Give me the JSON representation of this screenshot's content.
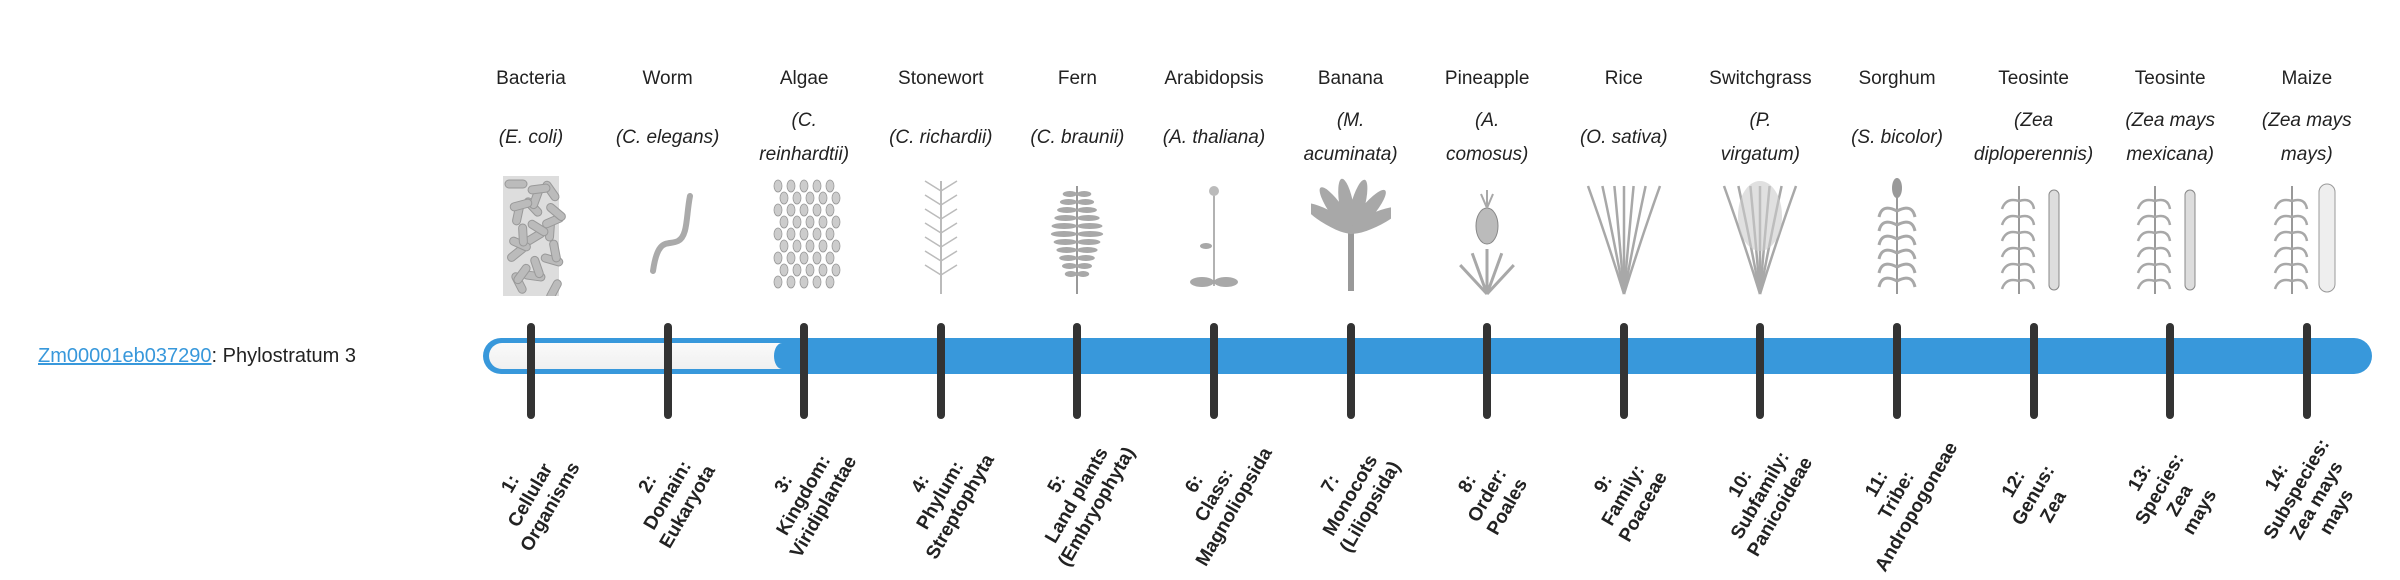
{
  "gene": {
    "id": "Zm00001eb037290",
    "separator": ": ",
    "stratum_text": "Phylostratum 3",
    "stratum": 3
  },
  "colors": {
    "bar": "#3898db",
    "link": "#3898db",
    "tick": "#333333"
  },
  "columns": [
    {
      "name": "Bacteria",
      "species": [
        "(E. coli)"
      ],
      "icon": "bacteria-icon",
      "rank": [
        "1:",
        "Cellular",
        "Organisms"
      ]
    },
    {
      "name": "Worm",
      "species": [
        "(C. elegans)"
      ],
      "icon": "worm-icon",
      "rank": [
        "2:",
        "Domain:",
        "Eukaryota"
      ]
    },
    {
      "name": "Algae",
      "species": [
        "(C.",
        "reinhardtii)"
      ],
      "icon": "algae-icon",
      "rank": [
        "3:",
        "Kingdom:",
        "Viridiplantae"
      ]
    },
    {
      "name": "Stonewort",
      "species": [
        "(C. richardii)"
      ],
      "icon": "stonewort-icon",
      "rank": [
        "4:",
        "Phylum:",
        "Streptophyta"
      ]
    },
    {
      "name": "Fern",
      "species": [
        "(C. braunii)"
      ],
      "icon": "fern-icon",
      "rank": [
        "5:",
        "Land plants",
        "(Embryophyta)"
      ]
    },
    {
      "name": "Arabidopsis",
      "species": [
        "(A. thaliana)"
      ],
      "icon": "arabidopsis-icon",
      "rank": [
        "6:",
        "Class:",
        "Magnoliopsida"
      ]
    },
    {
      "name": "Banana",
      "species": [
        "(M.",
        "acuminata)"
      ],
      "icon": "banana-icon",
      "rank": [
        "7:",
        "Monocots",
        "(Liliopsida)"
      ]
    },
    {
      "name": "Pineapple",
      "species": [
        "(A.",
        "comosus)"
      ],
      "icon": "pineapple-icon",
      "rank": [
        "8:",
        "Order:",
        "Poales"
      ]
    },
    {
      "name": "Rice",
      "species": [
        "(O. sativa)"
      ],
      "icon": "rice-icon",
      "rank": [
        "9:",
        "Family:",
        "Poaceae"
      ]
    },
    {
      "name": "Switchgrass",
      "species": [
        "(P.",
        "virgatum)"
      ],
      "icon": "switchgrass-icon",
      "rank": [
        "10:",
        "Subfamily:",
        "Panicoideae"
      ]
    },
    {
      "name": "Sorghum",
      "species": [
        "(S. bicolor)"
      ],
      "icon": "sorghum-icon",
      "rank": [
        "11:",
        "Tribe:",
        "Andropogoneae"
      ]
    },
    {
      "name": "Teosinte",
      "species": [
        "(Zea",
        "diploperennis)"
      ],
      "icon": "teosinte-icon",
      "rank": [
        "12:",
        "Genus:",
        "Zea"
      ]
    },
    {
      "name": "Teosinte",
      "species": [
        "(Zea mays",
        "mexicana)"
      ],
      "icon": "teosinte-icon",
      "rank": [
        "13:",
        "Species:",
        "Zea",
        "mays"
      ]
    },
    {
      "name": "Maize",
      "species": [
        "(Zea mays",
        "mays)"
      ],
      "icon": "maize-icon",
      "rank": [
        "14:",
        "Subspecies:",
        "Zea mays",
        "mays"
      ]
    }
  ]
}
